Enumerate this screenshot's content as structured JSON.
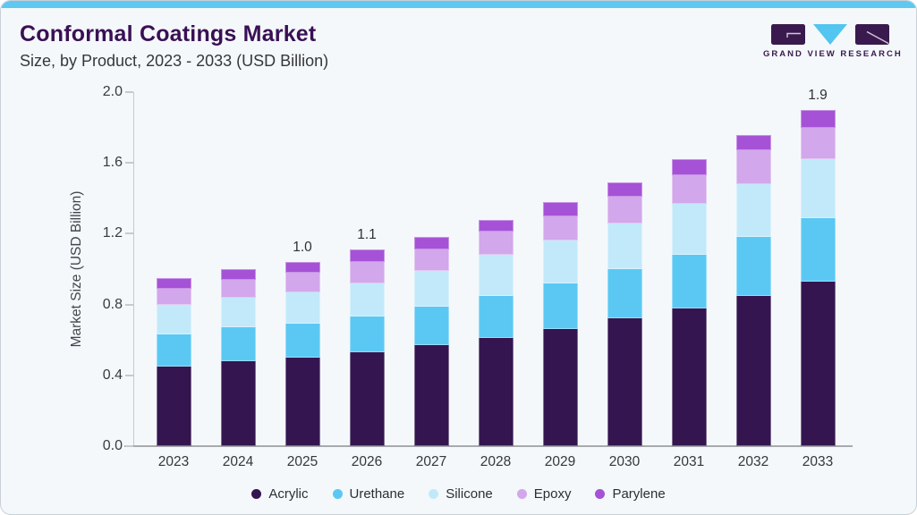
{
  "header": {
    "title": "Conformal Coatings Market",
    "subtitle": "Size, by Product, 2023 - 2033 (USD Billion)",
    "logo_text": "GRAND VIEW RESEARCH"
  },
  "colors": {
    "accent_bar": "#5fc8f1",
    "card_background": "#f4f8fb",
    "title": "#3a1054",
    "logo_purple": "#3a1a4e",
    "logo_blue": "#52c5f0"
  },
  "chart_data": {
    "type": "bar",
    "stacked": true,
    "title": "Conformal Coatings Market Size, by Product, 2023 - 2033 (USD Billion)",
    "categories": [
      "2023",
      "2024",
      "2025",
      "2026",
      "2027",
      "2028",
      "2029",
      "2030",
      "2031",
      "2032",
      "2033"
    ],
    "series": [
      {
        "name": "Acrylic",
        "color": "#341550",
        "values": [
          0.45,
          0.48,
          0.5,
          0.53,
          0.57,
          0.61,
          0.66,
          0.72,
          0.78,
          0.85,
          0.93
        ]
      },
      {
        "name": "Urethane",
        "color": "#5bc8f4",
        "values": [
          0.18,
          0.19,
          0.19,
          0.2,
          0.22,
          0.24,
          0.26,
          0.28,
          0.3,
          0.33,
          0.36
        ]
      },
      {
        "name": "Silicone",
        "color": "#c2e9fa",
        "values": [
          0.17,
          0.17,
          0.18,
          0.19,
          0.2,
          0.23,
          0.24,
          0.26,
          0.29,
          0.3,
          0.33
        ]
      },
      {
        "name": "Epoxy",
        "color": "#d2a7eb",
        "values": [
          0.09,
          0.1,
          0.11,
          0.12,
          0.12,
          0.13,
          0.14,
          0.15,
          0.16,
          0.19,
          0.18
        ]
      },
      {
        "name": "Parylene",
        "color": "#a552d6",
        "values": [
          0.06,
          0.06,
          0.06,
          0.07,
          0.07,
          0.07,
          0.08,
          0.08,
          0.09,
          0.09,
          0.1
        ]
      }
    ],
    "bar_labels": [
      "",
      "",
      "1.0",
      "1.1",
      "",
      "",
      "",
      "",
      "",
      "",
      "1.9"
    ],
    "totals": [
      0.95,
      1.0,
      1.04,
      1.11,
      1.18,
      1.28,
      1.38,
      1.49,
      1.62,
      1.76,
      1.9
    ],
    "ylabel": "Market Size (USD Billion)",
    "yticks": [
      0.0,
      0.4,
      0.8,
      1.2,
      1.6,
      2.0
    ],
    "ytick_labels": [
      "0.0",
      "0.4",
      "0.8",
      "1.2",
      "1.6",
      "2.0"
    ],
    "ylim": [
      0,
      2.0
    ],
    "grid": false,
    "legend_position": "bottom"
  }
}
